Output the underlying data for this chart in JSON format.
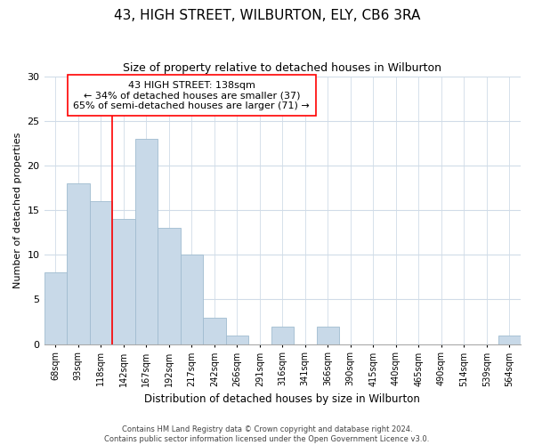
{
  "title": "43, HIGH STREET, WILBURTON, ELY, CB6 3RA",
  "subtitle": "Size of property relative to detached houses in Wilburton",
  "xlabel": "Distribution of detached houses by size in Wilburton",
  "ylabel": "Number of detached properties",
  "bar_labels": [
    "68sqm",
    "93sqm",
    "118sqm",
    "142sqm",
    "167sqm",
    "192sqm",
    "217sqm",
    "242sqm",
    "266sqm",
    "291sqm",
    "316sqm",
    "341sqm",
    "366sqm",
    "390sqm",
    "415sqm",
    "440sqm",
    "465sqm",
    "490sqm",
    "514sqm",
    "539sqm",
    "564sqm"
  ],
  "bar_values": [
    8,
    18,
    16,
    14,
    23,
    13,
    10,
    3,
    1,
    0,
    2,
    0,
    2,
    0,
    0,
    0,
    0,
    0,
    0,
    0,
    1
  ],
  "bar_color": "#c8d9e8",
  "bar_edge_color": "#a0bcd0",
  "red_line_x": 3,
  "ylim": [
    0,
    30
  ],
  "yticks": [
    0,
    5,
    10,
    15,
    20,
    25,
    30
  ],
  "annotation_text": "43 HIGH STREET: 138sqm\n← 34% of detached houses are smaller (37)\n65% of semi-detached houses are larger (71) →",
  "footer_line1": "Contains HM Land Registry data © Crown copyright and database right 2024.",
  "footer_line2": "Contains public sector information licensed under the Open Government Licence v3.0.",
  "background_color": "#ffffff",
  "grid_color": "#d0dce8"
}
